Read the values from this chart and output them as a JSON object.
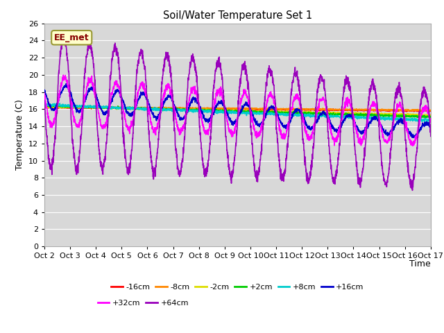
{
  "title": "Soil/Water Temperature Set 1",
  "xlabel": "Time",
  "ylabel": "Temperature (C)",
  "ylim": [
    0,
    26
  ],
  "yticks": [
    0,
    2,
    4,
    6,
    8,
    10,
    12,
    14,
    16,
    18,
    20,
    22,
    24,
    26
  ],
  "xtick_labels": [
    "Oct 2",
    "Oct 3",
    "Oct 4",
    "Oct 5",
    "Oct 6",
    "Oct 7",
    "Oct 8",
    "Oct 9",
    "Oct 10",
    "Oct 11",
    "Oct 12",
    "Oct 13",
    "Oct 14",
    "Oct 15",
    "Oct 16",
    "Oct 17"
  ],
  "plot_bg_color": "#d8d8d8",
  "fig_bg_color": "#ffffff",
  "grid_color": "#ffffff",
  "annotation_text": "EE_met",
  "annotation_bg": "#ffffcc",
  "annotation_border": "#999933",
  "annotation_text_color": "#880000",
  "series": [
    {
      "label": "-16cm",
      "color": "#ff0000",
      "lw": 1.2
    },
    {
      "label": "-8cm",
      "color": "#ff8800",
      "lw": 1.2
    },
    {
      "label": "-2cm",
      "color": "#dddd00",
      "lw": 1.2
    },
    {
      "label": "+2cm",
      "color": "#00cc00",
      "lw": 1.2
    },
    {
      "label": "+8cm",
      "color": "#00cccc",
      "lw": 1.2
    },
    {
      "label": "+16cm",
      "color": "#0000cc",
      "lw": 1.2
    },
    {
      "label": "+32cm",
      "color": "#ff00ff",
      "lw": 1.2
    },
    {
      "label": "+64cm",
      "color": "#9900bb",
      "lw": 1.2
    }
  ],
  "legend_row1": [
    "-16cm",
    "-8cm",
    "-2cm",
    "+2cm",
    "+8cm",
    "+16cm"
  ],
  "legend_row2": [
    "+32cm",
    "+64cm"
  ]
}
